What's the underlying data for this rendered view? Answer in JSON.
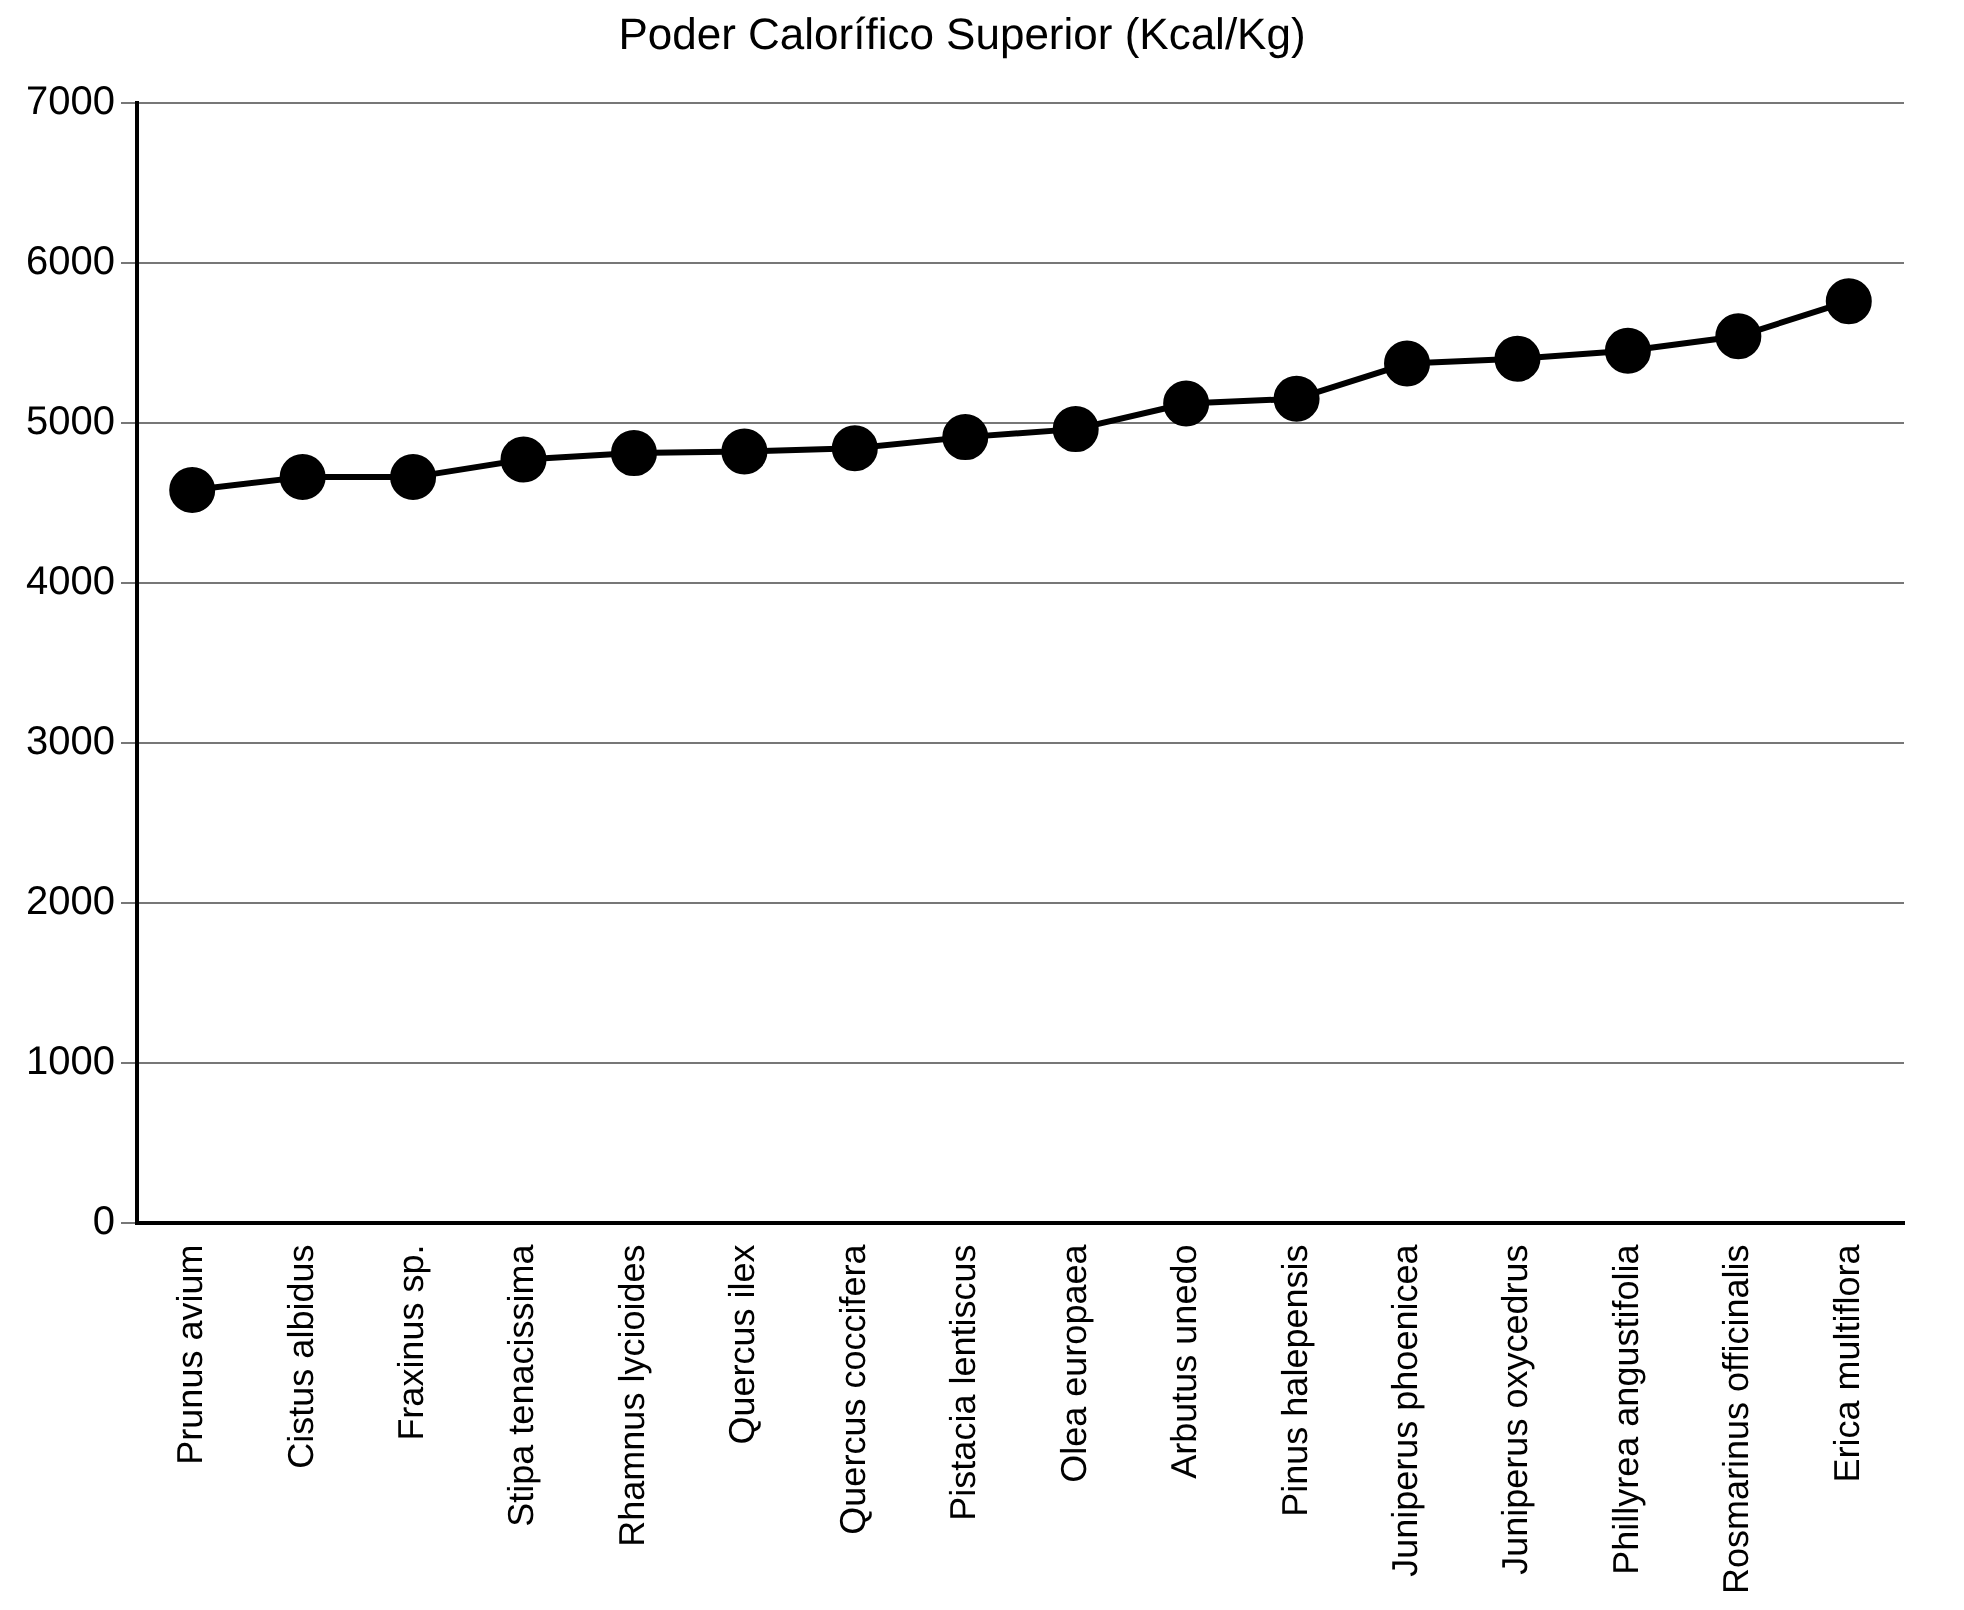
{
  "chart_data": {
    "type": "line",
    "title": "Poder Calorífico Superior (Kcal/Kg)",
    "categories": [
      "Prunus avium",
      "Cistus albidus",
      "Fraxinus sp.",
      "Stipa tenacissima",
      "Rhamnus lycioides",
      "Quercus ilex",
      "Quercus coccifera",
      "Pistacia lentiscus",
      "Olea europaea",
      "Arbutus unedo",
      "Pinus halepensis",
      "Juniperus phoenicea",
      "Juniperus oxycedrus",
      "Phillyrea angustifolia",
      "Rosmarinus officinalis",
      "Erica multiflora"
    ],
    "series": [
      {
        "color": "#000000",
        "values": [
          4580,
          4660,
          4660,
          4770,
          4810,
          4820,
          4840,
          4910,
          4960,
          5120,
          5150,
          5370,
          5400,
          5450,
          5540,
          5760
        ]
      }
    ],
    "ylim": [
      0,
      7000
    ],
    "yticks": [
      0,
      1000,
      2000,
      3000,
      4000,
      5000,
      6000,
      7000
    ],
    "grid": "y",
    "legend": false,
    "marker": "circle",
    "line_style": "solid"
  }
}
